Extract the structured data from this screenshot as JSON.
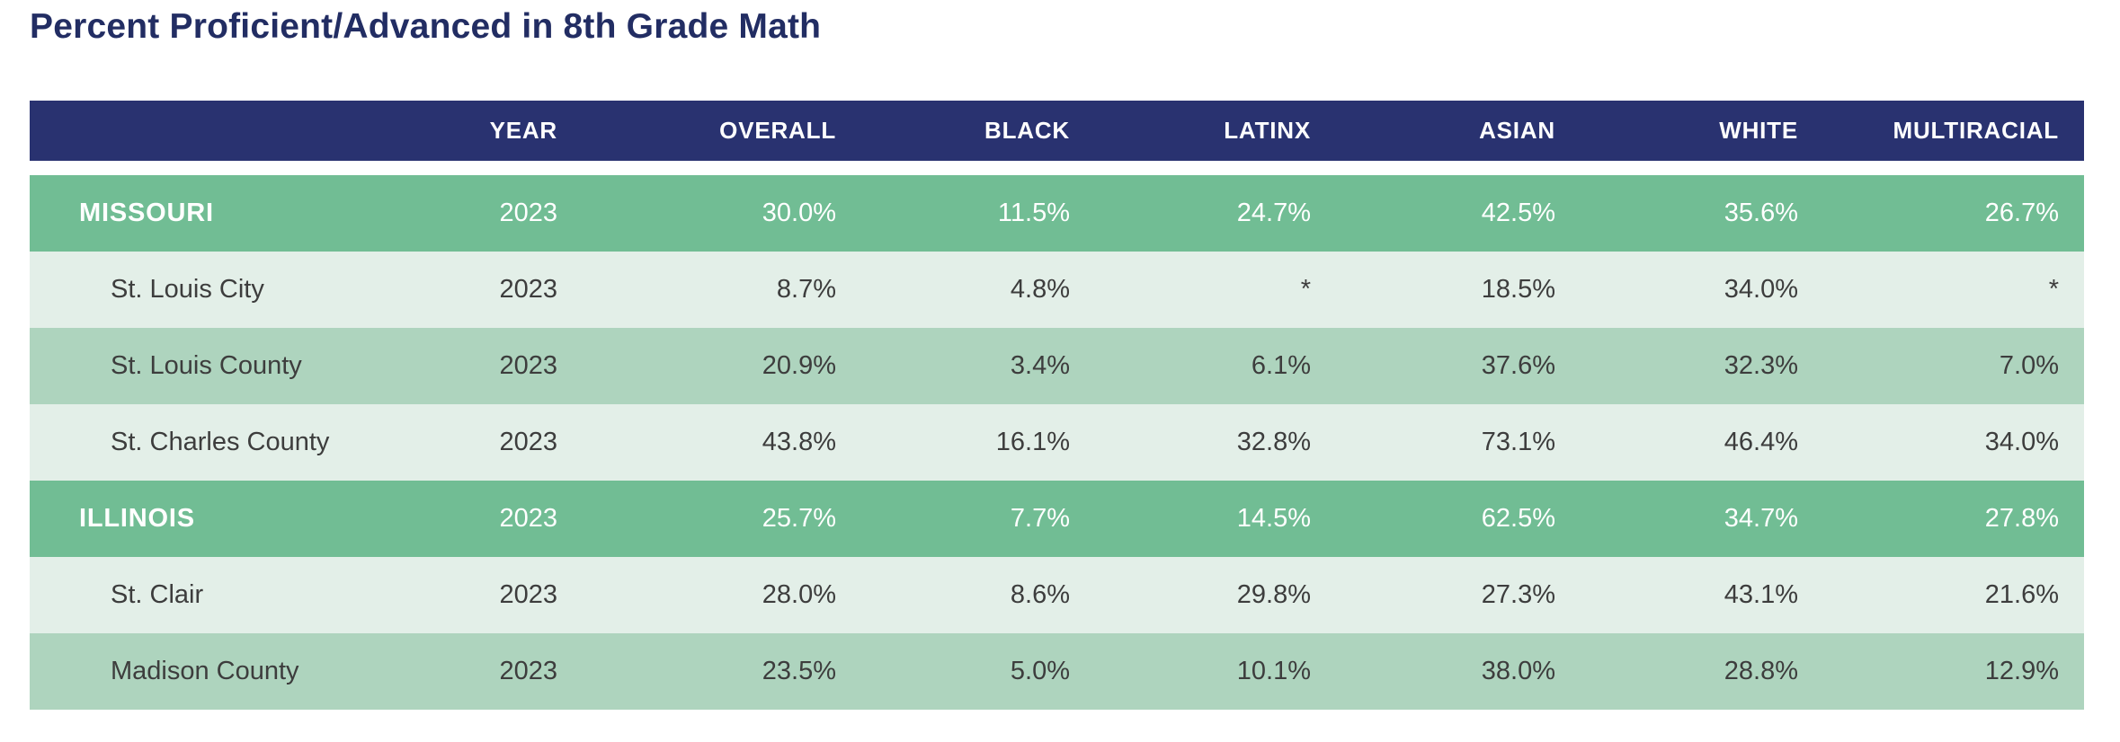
{
  "title": "Percent Proficient/Advanced in 8th Grade Math",
  "colors": {
    "title_color": "#222d63",
    "header_bg": "#293270",
    "state_row_bg": "#71bd94",
    "sub_row_light_bg": "#e3efe8",
    "sub_row_medium_bg": "#aed4be",
    "body_text": "#3d3d3d",
    "header_text": "#ffffff",
    "state_row_text": "#ffffff"
  },
  "chart_data": {
    "type": "table",
    "title": "Percent Proficient/Advanced in 8th Grade Math",
    "columns": [
      "",
      "YEAR",
      "OVERALL",
      "BLACK",
      "LATINX",
      "ASIAN",
      "WHITE",
      "MULTIRACIAL"
    ],
    "rows": [
      {
        "label": "MISSOURI",
        "level": "state",
        "values": [
          "2023",
          "30.0%",
          "11.5%",
          "24.7%",
          "42.5%",
          "35.6%",
          "26.7%"
        ]
      },
      {
        "label": "St. Louis City",
        "level": "sub",
        "values": [
          "2023",
          "8.7%",
          "4.8%",
          "*",
          "18.5%",
          "34.0%",
          "*"
        ]
      },
      {
        "label": "St. Louis County",
        "level": "sub",
        "values": [
          "2023",
          "20.9%",
          "3.4%",
          "6.1%",
          "37.6%",
          "32.3%",
          "7.0%"
        ]
      },
      {
        "label": "St. Charles County",
        "level": "sub",
        "values": [
          "2023",
          "43.8%",
          "16.1%",
          "32.8%",
          "73.1%",
          "46.4%",
          "34.0%"
        ]
      },
      {
        "label": "ILLINOIS",
        "level": "state",
        "values": [
          "2023",
          "25.7%",
          "7.7%",
          "14.5%",
          "62.5%",
          "34.7%",
          "27.8%"
        ]
      },
      {
        "label": "St. Clair",
        "level": "sub",
        "values": [
          "2023",
          "28.0%",
          "8.6%",
          "29.8%",
          "27.3%",
          "43.1%",
          "21.6%"
        ]
      },
      {
        "label": "Madison County",
        "level": "sub",
        "values": [
          "2023",
          "23.5%",
          "5.0%",
          "10.1%",
          "38.0%",
          "28.8%",
          "12.9%"
        ]
      }
    ]
  }
}
